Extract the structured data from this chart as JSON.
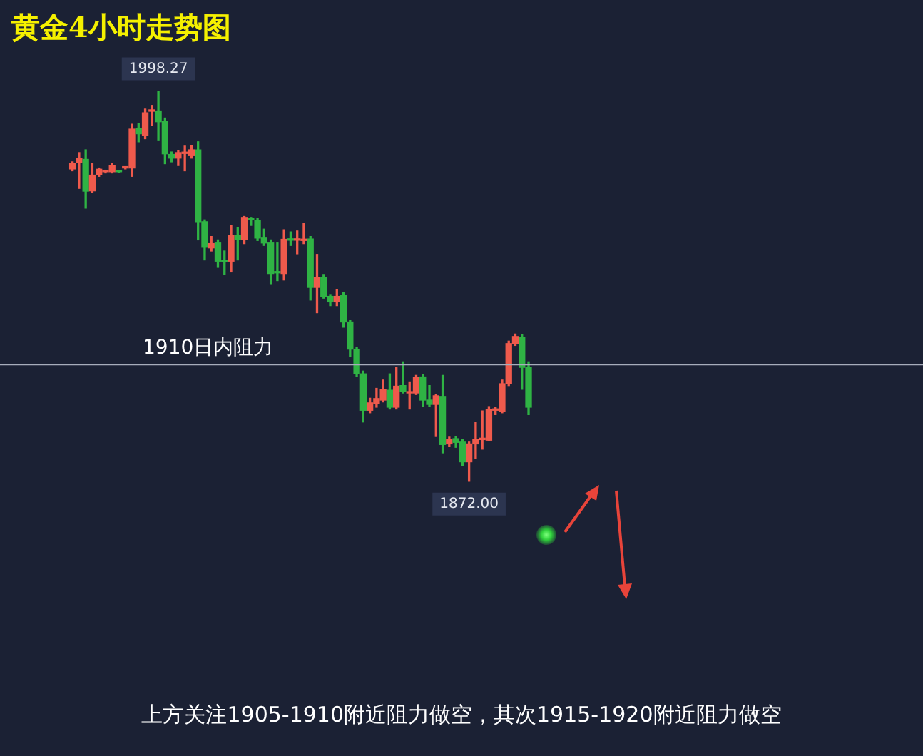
{
  "chart_data": {
    "type": "candlestick",
    "title": "黄金4小时走势图",
    "categories": [
      null,
      null,
      null,
      null,
      null,
      null,
      null,
      null,
      null,
      null,
      null,
      null,
      null,
      null,
      null,
      null,
      null,
      null,
      null,
      null,
      null,
      null,
      null,
      null,
      null,
      null,
      null,
      null,
      null,
      null,
      null,
      null,
      null,
      null,
      null,
      null,
      null,
      null,
      null,
      null,
      null,
      null,
      null,
      null,
      null,
      null,
      null,
      null,
      null,
      null,
      null,
      null,
      null,
      null,
      null,
      null,
      null,
      null,
      null,
      null,
      null,
      null,
      null,
      null,
      null,
      null,
      null,
      null,
      null,
      null
    ],
    "ohlc": [
      [
        1973.2,
        1975.5,
        1972.6,
        1974.9
      ],
      [
        1975.2,
        1978.5,
        1966.9,
        1976.7
      ],
      [
        1976.3,
        1979.4,
        1960.5,
        1966.0
      ],
      [
        1966.1,
        1974.9,
        1965.5,
        1971.2
      ],
      [
        1971.4,
        1973.5,
        1970.8,
        1973.1
      ],
      [
        1972.3,
        1972.8,
        1971.9,
        1972.4
      ],
      [
        1972.3,
        1974.9,
        1971.9,
        1974.3
      ],
      [
        1972.4,
        1972.6,
        1972.1,
        1972.3
      ],
      [
        1973.5,
        1973.9,
        1973.2,
        1973.6
      ],
      [
        1973.5,
        1987.7,
        1970.8,
        1986.1
      ],
      [
        1986.4,
        1987.9,
        1982.0,
        1984.6
      ],
      [
        1984.1,
        1992.6,
        1983.0,
        1991.4
      ],
      [
        1991.9,
        1993.8,
        1987.3,
        1992.0
      ],
      [
        1992.0,
        1998.27,
        1982.6,
        1988.5
      ],
      [
        1988.7,
        1989.7,
        1974.9,
        1978.1
      ],
      [
        1977.9,
        1978.7,
        1975.5,
        1976.7
      ],
      [
        1976.7,
        1979.1,
        1974.3,
        1978.5
      ],
      [
        1978.2,
        1980.6,
        1972.6,
        1978.3
      ],
      [
        1977.5,
        1980.8,
        1976.7,
        1979.4
      ],
      [
        1979.4,
        1982.0,
        1950.2,
        1956.1
      ],
      [
        1956.1,
        1956.7,
        1943.7,
        1947.8
      ],
      [
        1947.6,
        1951.3,
        1946.6,
        1949.0
      ],
      [
        1949.2,
        1950.2,
        1941.3,
        1943.3
      ],
      [
        1943.5,
        1946.6,
        1939.0,
        1943.1
      ],
      [
        1943.3,
        1954.9,
        1939.8,
        1951.6
      ],
      [
        1951.7,
        1954.3,
        1943.7,
        1950.4
      ],
      [
        1950.4,
        1957.8,
        1949.0,
        1957.5
      ],
      [
        1956.9,
        1957.5,
        1954.9,
        1956.8
      ],
      [
        1956.5,
        1957.2,
        1950.0,
        1950.8
      ],
      [
        1950.8,
        1953.7,
        1948.4,
        1949.2
      ],
      [
        1949.2,
        1950.2,
        1936.0,
        1939.3
      ],
      [
        1939.6,
        1949.2,
        1937.0,
        1939.5
      ],
      [
        1939.3,
        1953.5,
        1937.2,
        1950.4
      ],
      [
        1950.2,
        1952.8,
        1948.4,
        1950.1
      ],
      [
        1950.1,
        1953.1,
        1945.7,
        1950.2
      ],
      [
        1950.0,
        1955.5,
        1949.0,
        1950.3
      ],
      [
        1950.5,
        1951.3,
        1930.7,
        1934.8
      ],
      [
        1934.8,
        1945.5,
        1926.6,
        1938.1
      ],
      [
        1938.1,
        1939.0,
        1931.3,
        1931.9
      ],
      [
        1931.9,
        1932.5,
        1928.9,
        1930.1
      ],
      [
        1930.1,
        1934.2,
        1928.9,
        1931.9
      ],
      [
        1932.2,
        1933.1,
        1921.9,
        1923.6
      ],
      [
        1923.6,
        1924.2,
        1912.4,
        1914.8
      ],
      [
        1914.8,
        1915.4,
        1905.9,
        1906.8
      ],
      [
        1906.8,
        1907.7,
        1891.2,
        1895.0
      ],
      [
        1895.0,
        1898.9,
        1894.2,
        1897.4
      ],
      [
        1897.1,
        1902.1,
        1896.0,
        1898.8
      ],
      [
        1898.3,
        1904.8,
        1897.7,
        1901.8
      ],
      [
        1901.5,
        1906.8,
        1895.4,
        1896.0
      ],
      [
        1896.0,
        1908.9,
        1895.4,
        1902.8
      ],
      [
        1903.0,
        1910.7,
        1900.6,
        1901.0
      ],
      [
        1900.6,
        1904.2,
        1895.4,
        1900.7
      ],
      [
        1900.6,
        1906.3,
        1900.1,
        1905.6
      ],
      [
        1905.8,
        1906.5,
        1896.2,
        1898.3
      ],
      [
        1898.3,
        1903.0,
        1896.2,
        1896.9
      ],
      [
        1896.9,
        1900.1,
        1886.5,
        1899.7
      ],
      [
        1899.5,
        1906.3,
        1881.2,
        1883.9
      ],
      [
        1884.1,
        1886.3,
        1883.2,
        1885.5
      ],
      [
        1885.8,
        1886.5,
        1883.0,
        1884.6
      ],
      [
        1884.7,
        1885.6,
        1877.1,
        1878.3
      ],
      [
        1878.3,
        1884.7,
        1872.0,
        1884.1
      ],
      [
        1884.1,
        1891.2,
        1879.4,
        1885.5
      ],
      [
        1885.5,
        1894.8,
        1882.4,
        1885.6
      ],
      [
        1885.3,
        1896.2,
        1885.1,
        1895.3
      ],
      [
        1895.0,
        1896.0,
        1893.6,
        1895.1
      ],
      [
        1894.7,
        1904.8,
        1894.2,
        1903.6
      ],
      [
        1903.6,
        1917.4,
        1903.0,
        1916.6
      ],
      [
        1916.6,
        1919.7,
        1916.0,
        1918.9
      ],
      [
        1918.6,
        1919.5,
        1901.8,
        1908.9
      ],
      [
        1908.9,
        1910.7,
        1893.6,
        1896.0
      ]
    ],
    "ref_lines": [
      {
        "axis": "y",
        "value": 1910,
        "label": "1910日内阻力"
      }
    ],
    "annotations": [
      {
        "text": "1998.27",
        "y": 1998.27
      },
      {
        "text": "1872.00",
        "y": 1872.0
      },
      "上方关注1905-1910附近阻力做空，其次1915-1920附近阻力做空"
    ]
  }
}
